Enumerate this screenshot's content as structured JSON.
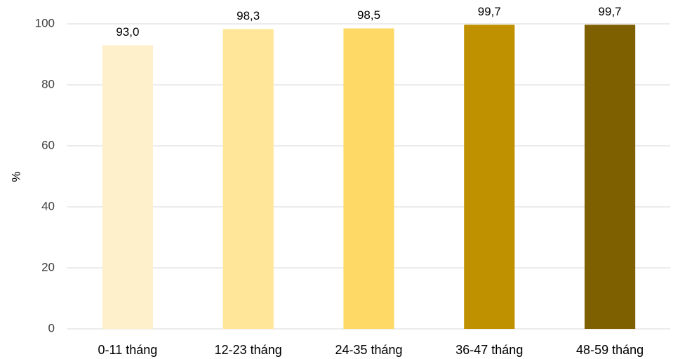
{
  "chart_data": {
    "type": "bar",
    "categories": [
      "0-11 tháng",
      "12-23 tháng",
      "24-35 tháng",
      "36-47 tháng",
      "48-59 tháng"
    ],
    "values": [
      93.0,
      98.3,
      98.5,
      99.7,
      99.7
    ],
    "data_labels": [
      "93,0",
      "98,3",
      "98,5",
      "99,7",
      "99,7"
    ],
    "bar_colors": [
      "#FFF0CC",
      "#FFE699",
      "#FFD966",
      "#BF9000",
      "#7F6000"
    ],
    "ylabel": "%",
    "ylim": [
      0,
      100
    ],
    "yticks": [
      0,
      20,
      40,
      60,
      80,
      100
    ],
    "ytick_labels": [
      "0",
      "20",
      "40",
      "60",
      "80",
      "100"
    ],
    "grid": true,
    "legend": "none"
  }
}
